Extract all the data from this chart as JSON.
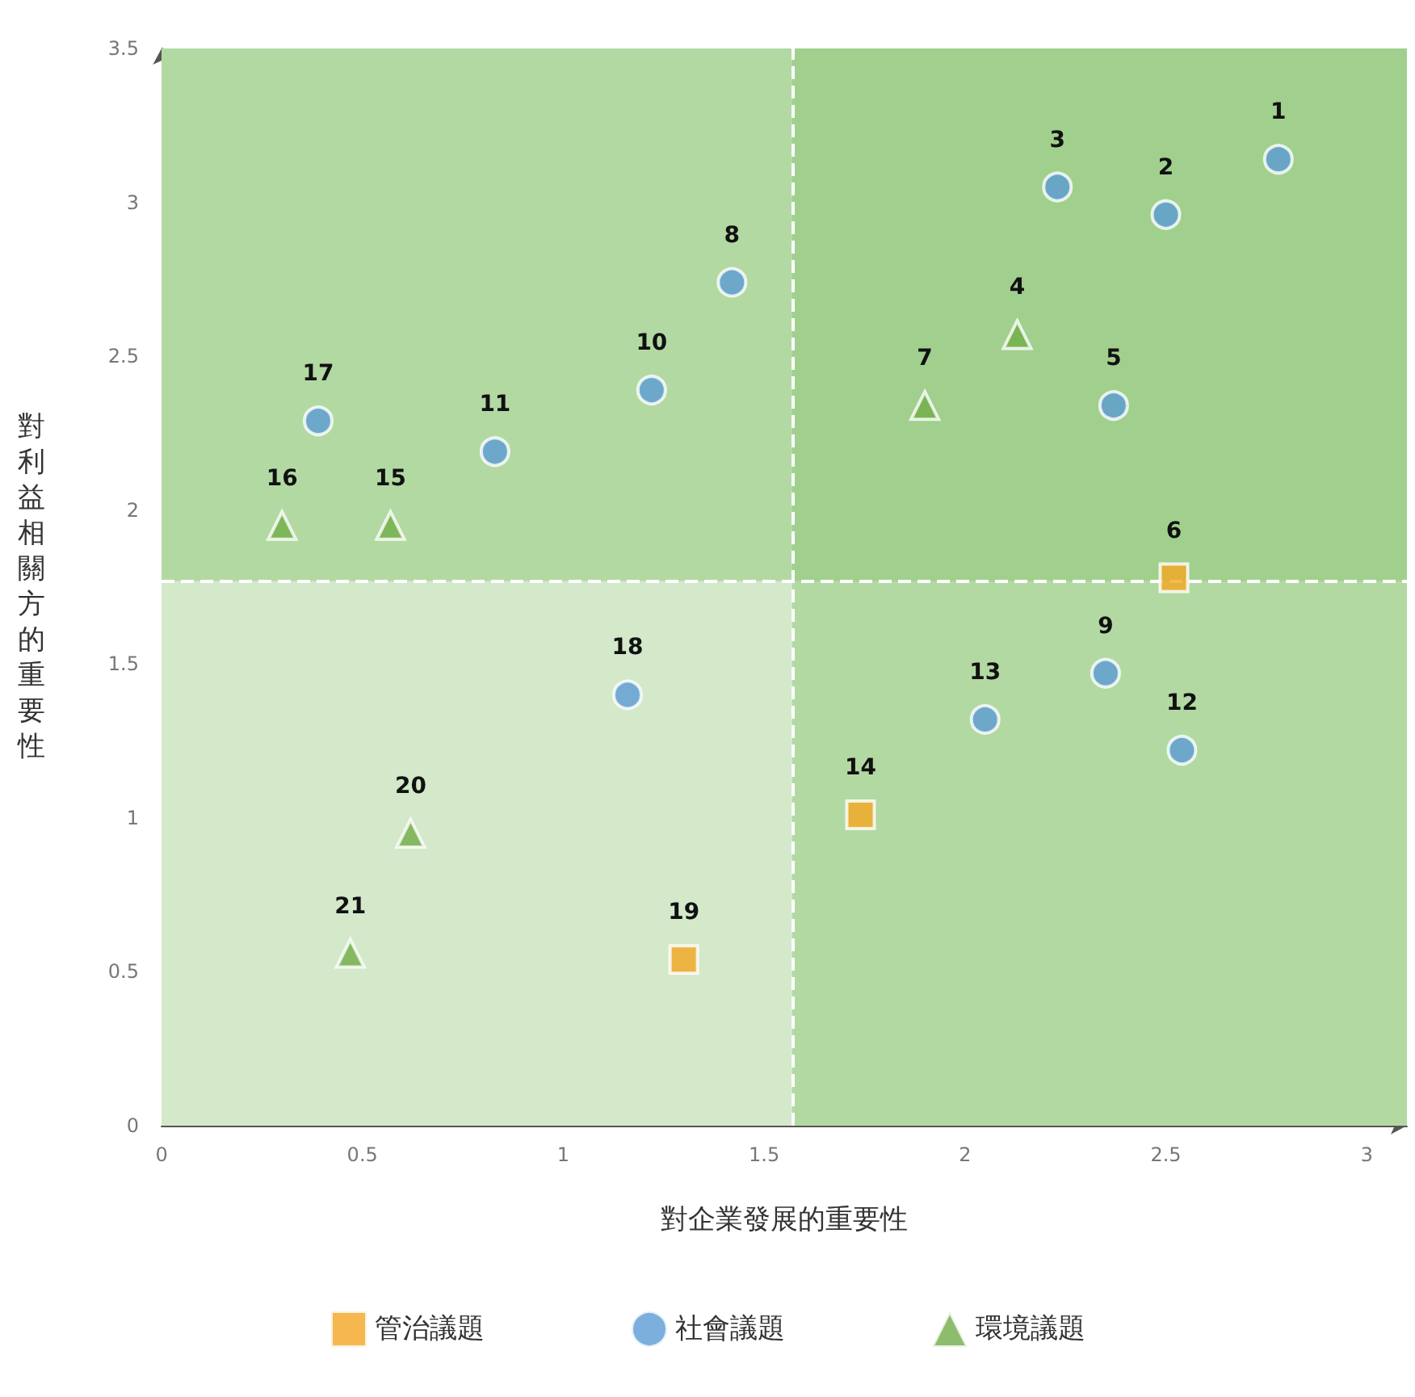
{
  "chart_data": {
    "type": "scatter",
    "xlabel": "對企業發展的重要性",
    "ylabel": "對利益相關方的重要性",
    "xlim": [
      0,
      3.1
    ],
    "ylim": [
      0,
      3.5
    ],
    "xticks": [
      0,
      0.5,
      1,
      1.5,
      2,
      2.5,
      3
    ],
    "yticks": [
      0,
      0.5,
      1,
      1.5,
      2,
      2.5,
      3,
      3.5
    ],
    "legend": "bottom",
    "series": [
      {
        "name": "管治議題",
        "color": "#f4a622",
        "marker": "square",
        "x": [
          2.52,
          1.74,
          1.3
        ],
        "values": [
          1.78,
          1.01,
          0.54
        ]
      },
      {
        "name": "社會議題",
        "color": "#5b9bd5",
        "marker": "circle",
        "x": [
          2.78,
          2.5,
          2.23,
          2.37,
          1.42,
          2.35,
          1.22,
          0.83,
          2.54,
          2.05,
          0.39,
          1.16
        ],
        "values": [
          3.14,
          2.96,
          3.05,
          2.34,
          2.74,
          1.47,
          2.39,
          2.19,
          1.22,
          1.32,
          2.29,
          1.4
        ]
      },
      {
        "name": "環境議題",
        "color": "#70ad47",
        "marker": "triangle",
        "x": [
          2.13,
          1.9,
          0.57,
          0.3,
          0.62,
          0.47
        ],
        "values": [
          2.57,
          2.34,
          1.95,
          1.95,
          0.95,
          0.56
        ]
      }
    ],
    "bands": [
      {
        "axis": "x",
        "from": 0,
        "to": 3.1,
        "color": "#d3e9c9"
      },
      {
        "axis": "y",
        "from": 1.77,
        "to": 3.5,
        "color": "#8cc576"
      },
      {
        "axis": "x",
        "from": 1.57,
        "to": 3.1,
        "color": "#8cc576"
      }
    ],
    "ref_lines": [
      {
        "axis": "x",
        "value": 1.57,
        "color": "#ffffff",
        "line_style": "dashed"
      },
      {
        "axis": "y",
        "value": 1.77,
        "color": "#ffffff",
        "line_style": "dashed"
      }
    ],
    "annotations": [
      {
        "text": "1",
        "x": 2.78,
        "y": 3.14
      },
      {
        "text": "2",
        "x": 2.5,
        "y": 2.96
      },
      {
        "text": "3",
        "x": 2.23,
        "y": 3.05
      },
      {
        "text": "4",
        "x": 2.13,
        "y": 2.57
      },
      {
        "text": "5",
        "x": 2.37,
        "y": 2.34
      },
      {
        "text": "6",
        "x": 2.52,
        "y": 1.78
      },
      {
        "text": "7",
        "x": 1.9,
        "y": 2.34
      },
      {
        "text": "8",
        "x": 1.42,
        "y": 2.74
      },
      {
        "text": "9",
        "x": 2.35,
        "y": 1.47
      },
      {
        "text": "10",
        "x": 1.22,
        "y": 2.39
      },
      {
        "text": "11",
        "x": 0.83,
        "y": 2.19
      },
      {
        "text": "12",
        "x": 2.54,
        "y": 1.22
      },
      {
        "text": "13",
        "x": 2.05,
        "y": 1.32
      },
      {
        "text": "14",
        "x": 1.74,
        "y": 1.01
      },
      {
        "text": "15",
        "x": 0.57,
        "y": 1.95
      },
      {
        "text": "16",
        "x": 0.3,
        "y": 1.95
      },
      {
        "text": "17",
        "x": 0.39,
        "y": 2.29
      },
      {
        "text": "18",
        "x": 1.16,
        "y": 1.4
      },
      {
        "text": "19",
        "x": 1.3,
        "y": 0.54
      },
      {
        "text": "20",
        "x": 0.62,
        "y": 0.95
      },
      {
        "text": "21",
        "x": 0.47,
        "y": 0.56
      }
    ]
  }
}
